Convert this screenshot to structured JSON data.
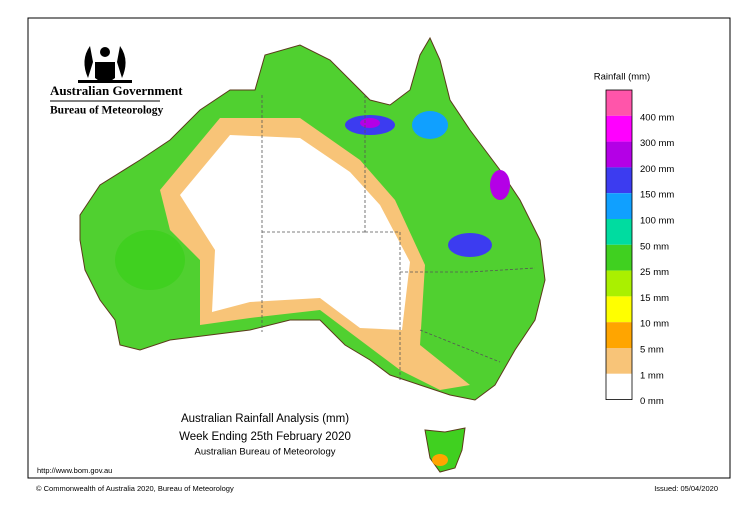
{
  "header": {
    "government": "Australian Government",
    "agency": "Bureau of Meteorology"
  },
  "legend": {
    "title": "Rainfall (mm)",
    "colors": [
      "#ff55aa",
      "#ff00ff",
      "#b400e6",
      "#3c3cf0",
      "#10a0ff",
      "#00dca0",
      "#40d020",
      "#aaf000",
      "#ffff00",
      "#ffa500",
      "#f8c478",
      "#ffffff"
    ],
    "labels": [
      "400 mm",
      "300 mm",
      "200 mm",
      "150 mm",
      "100 mm",
      "50 mm",
      "25 mm",
      "15 mm",
      "10 mm",
      "5 mm",
      "1 mm",
      "0 mm"
    ]
  },
  "title": {
    "line1": "Australian Rainfall Analysis (mm)",
    "line2": "Week Ending 25th February 2020",
    "line3": "Australian Bureau of Meteorology"
  },
  "footer": {
    "url": "http://www.bom.gov.au",
    "copyright": "© Commonwealth of Australia 2020, Bureau of Meteorology",
    "issued": "Issued: 05/04/2020"
  }
}
